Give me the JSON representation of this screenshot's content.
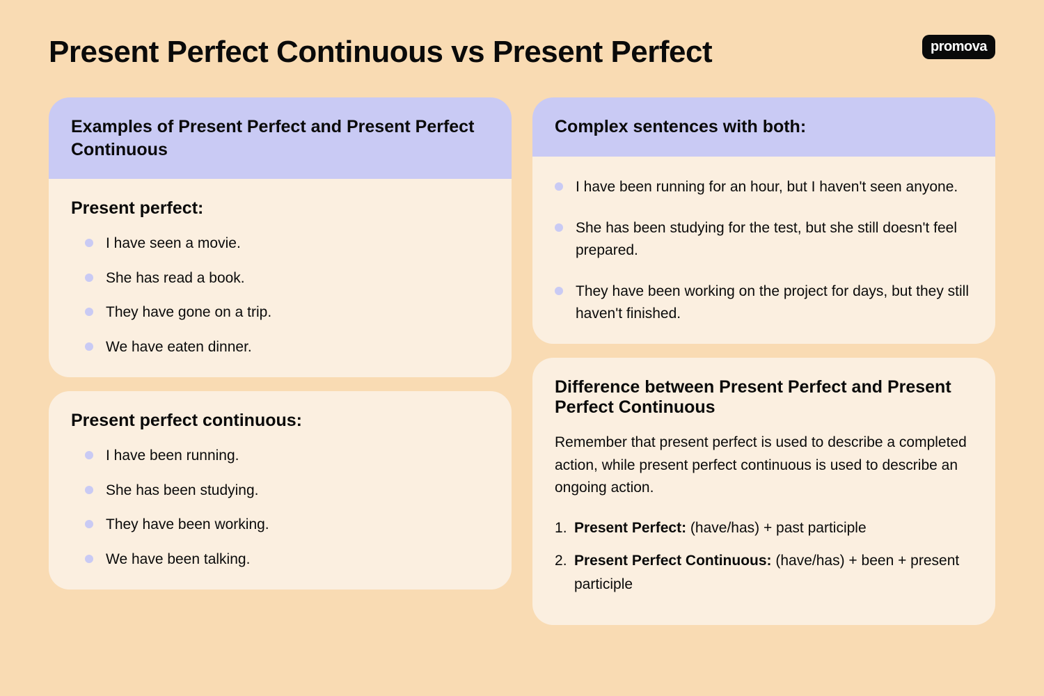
{
  "title": "Present Perfect Continuous vs Present Perfect",
  "logo": "promova",
  "colors": {
    "page_bg": "#f9dbb3",
    "card_bg": "#fbefe0",
    "header_bg": "#c9caf4",
    "bullet": "#c9caf4",
    "text": "#0a0a0a",
    "logo_bg": "#0a0a0a",
    "logo_text": "#ffffff"
  },
  "left": {
    "header": "Examples of Present Perfect and Present Perfect Continuous",
    "section1": {
      "title": "Present perfect:",
      "items": [
        "I have seen a movie.",
        "She has read a book.",
        "They have gone on a trip.",
        "We have eaten dinner."
      ]
    },
    "section2": {
      "title": "Present perfect continuous:",
      "items": [
        "I have been running.",
        "She has been studying.",
        "They have been working.",
        "We have been talking."
      ]
    }
  },
  "right": {
    "top": {
      "header": "Complex sentences with both:",
      "items": [
        "I have been running for an hour, but I haven't seen anyone.",
        "She has been studying for the test, but she still doesn't feel prepared.",
        "They have been working on the project for days, but they still haven't finished."
      ]
    },
    "bottom": {
      "title": "Difference between Present Perfect and Present Perfect Continuous",
      "body": "Remember that present perfect is used to describe a completed action, while present perfect continuous is used to describe an ongoing action.",
      "rules": [
        {
          "lead": "Present Perfect:",
          "rest": " (have/has) + past participle"
        },
        {
          "lead": "Present Perfect Continuous:",
          "rest": " (have/has) + been + present participle"
        }
      ]
    }
  }
}
